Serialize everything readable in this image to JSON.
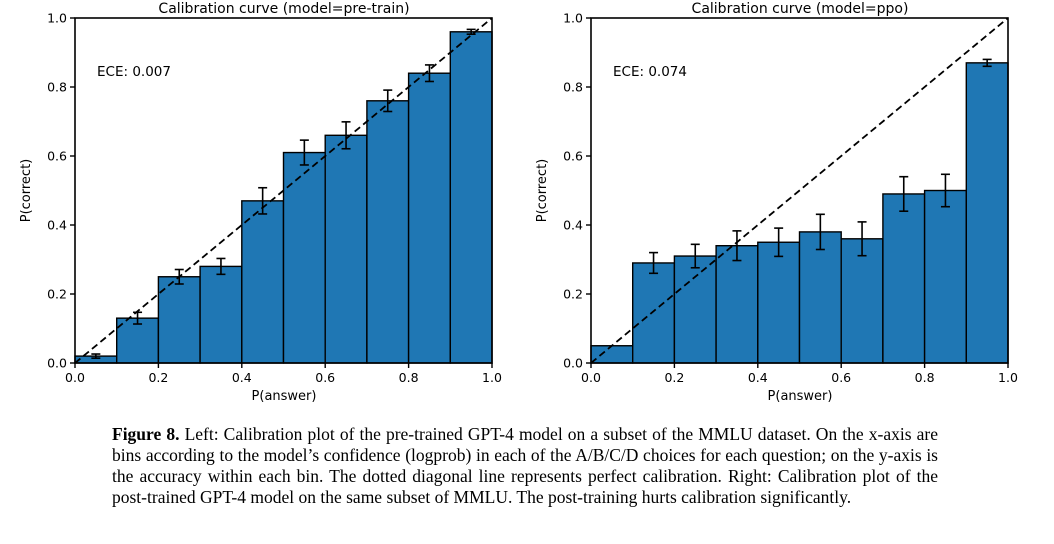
{
  "figure": {
    "caption_label": "Figure 8.",
    "caption_text": "Left: Calibration plot of the pre-trained GPT-4 model on a subset of the MMLU dataset. On the x-axis are bins according to the model’s confidence (logprob) in each of the A/B/C/D choices for each question; on the y-axis is the accuracy within each bin. The dotted diagonal line represents perfect calibration. Right: Calibration plot of the post-trained GPT-4 model on the same subset of MMLU. The post-training hurts calibration significantly."
  },
  "colors": {
    "bar_fill": "#1f77b4",
    "bar_edge": "#000000",
    "diagonal": "#000000",
    "error_bar": "#000000",
    "axes": "#000000"
  },
  "chart_data": [
    {
      "type": "bar",
      "title": "Calibration curve (model=pre-train)",
      "annotation": "ECE: 0.007",
      "xlabel": "P(answer)",
      "ylabel": "P(correct)",
      "xlim": [
        0.0,
        1.0
      ],
      "ylim": [
        0.0,
        1.0
      ],
      "grid": false,
      "diagonal_line": "perfect calibration (dashed, corner to corner)",
      "xtick_labels": [
        "0.0",
        "0.2",
        "0.4",
        "0.6",
        "0.8",
        "1.0"
      ],
      "ytick_labels": [
        "0.0",
        "0.2",
        "0.4",
        "0.6",
        "0.8",
        "1.0"
      ],
      "bin_edges": [
        0.0,
        0.1,
        0.2,
        0.3,
        0.4,
        0.5,
        0.6,
        0.7,
        0.8,
        0.9,
        1.0
      ],
      "values": [
        0.02,
        0.13,
        0.25,
        0.28,
        0.47,
        0.61,
        0.66,
        0.76,
        0.84,
        0.96
      ],
      "errors": [
        0.006,
        0.017,
        0.021,
        0.023,
        0.038,
        0.036,
        0.039,
        0.031,
        0.024,
        0.007
      ]
    },
    {
      "type": "bar",
      "title": "Calibration curve (model=ppo)",
      "annotation": "ECE: 0.074",
      "xlabel": "P(answer)",
      "ylabel": "P(correct)",
      "xlim": [
        0.0,
        1.0
      ],
      "ylim": [
        0.0,
        1.0
      ],
      "grid": false,
      "diagonal_line": "perfect calibration (dashed, corner to corner)",
      "xtick_labels": [
        "0.0",
        "0.2",
        "0.4",
        "0.6",
        "0.8",
        "1.0"
      ],
      "ytick_labels": [
        "0.0",
        "0.2",
        "0.4",
        "0.6",
        "0.8",
        "1.0"
      ],
      "bin_edges": [
        0.0,
        0.1,
        0.2,
        0.3,
        0.4,
        0.5,
        0.6,
        0.7,
        0.8,
        0.9,
        1.0
      ],
      "values": [
        0.05,
        0.29,
        0.31,
        0.34,
        0.35,
        0.38,
        0.36,
        0.49,
        0.5,
        0.87
      ],
      "errors": [
        0.0,
        0.03,
        0.034,
        0.043,
        0.041,
        0.051,
        0.049,
        0.05,
        0.047,
        0.01
      ]
    }
  ]
}
